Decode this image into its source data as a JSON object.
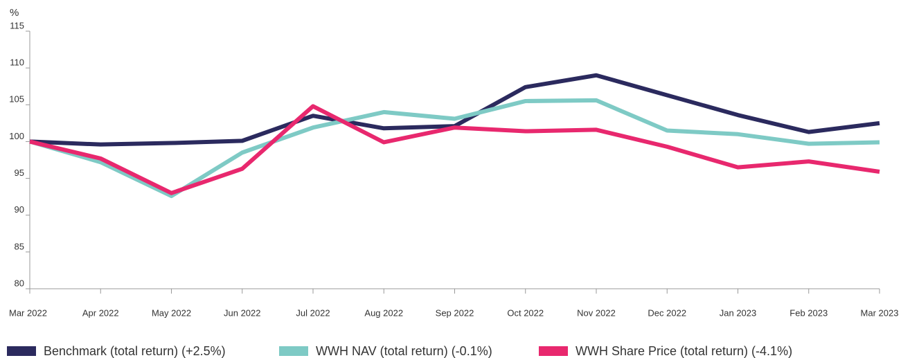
{
  "chart_data": {
    "type": "line",
    "y_label": "%",
    "categories": [
      "Mar 2022",
      "Apr 2022",
      "May 2022",
      "Jun 2022",
      "Jul 2022",
      "Aug 2022",
      "Sep 2022",
      "Oct 2022",
      "Nov 2022",
      "Dec 2022",
      "Jan 2023",
      "Feb 2023",
      "Mar 2023"
    ],
    "series": [
      {
        "name": "Benchmark (total return) (+2.5%)",
        "color": "#2b2a5e",
        "values": [
          100,
          99.6,
          99.8,
          100.1,
          103.5,
          101.8,
          102.1,
          107.4,
          109.0,
          106.3,
          103.6,
          101.3,
          102.5
        ]
      },
      {
        "name": "WWH NAV (total return) (-0.1%)",
        "color": "#7ecac5",
        "values": [
          100,
          97.2,
          92.6,
          98.5,
          101.9,
          104.0,
          103.1,
          105.5,
          105.6,
          101.5,
          101.0,
          99.7,
          99.9
        ]
      },
      {
        "name": "WWH Share Price (total return) (-4.1%)",
        "color": "#e8286e",
        "values": [
          100,
          97.7,
          93.0,
          96.3,
          104.8,
          99.9,
          101.9,
          101.4,
          101.6,
          99.3,
          96.5,
          97.3,
          95.9
        ]
      }
    ],
    "ylim": [
      80,
      115
    ],
    "yticks": [
      80,
      85,
      90,
      95,
      100,
      105,
      110,
      115
    ]
  }
}
